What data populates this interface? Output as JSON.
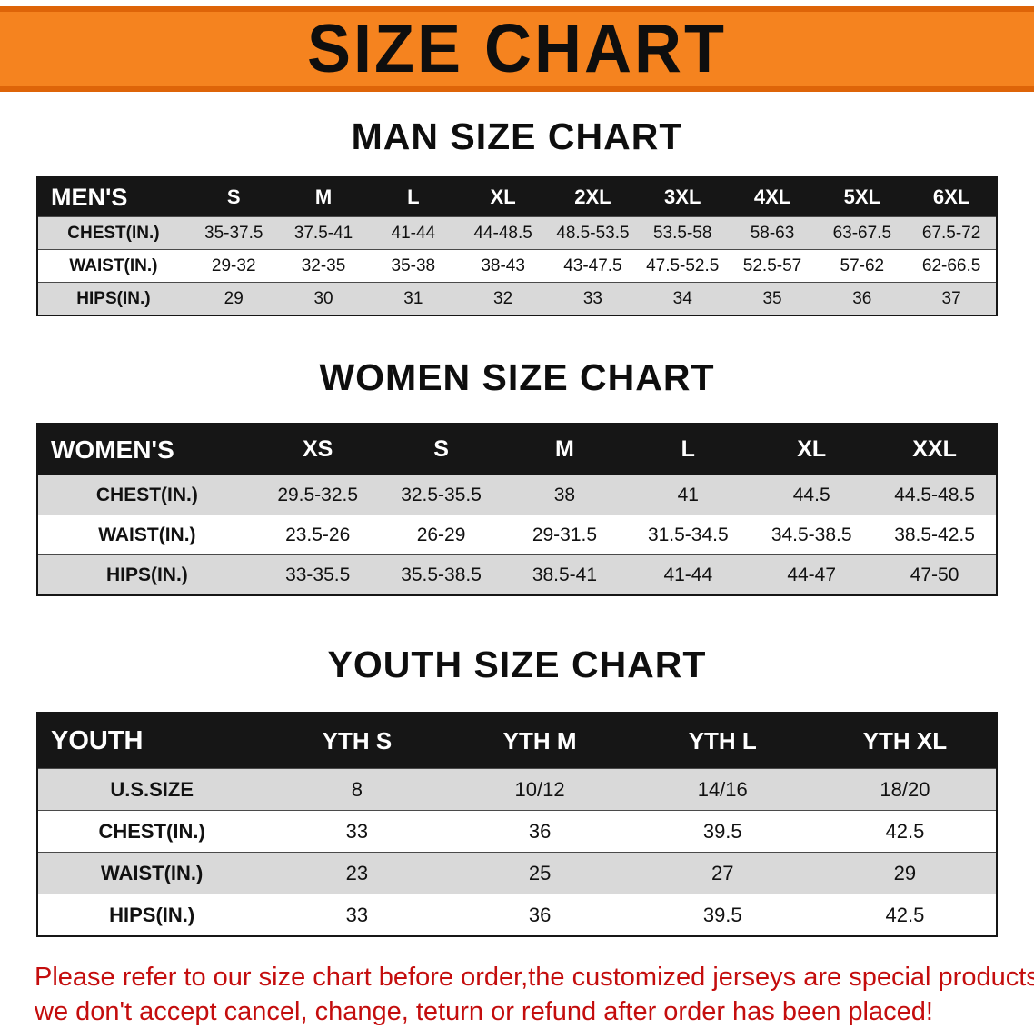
{
  "banner": {
    "title": "SIZE CHART"
  },
  "sections": {
    "men": {
      "heading": "MAN SIZE CHART"
    },
    "women": {
      "heading": "WOMEN SIZE CHART"
    },
    "youth": {
      "heading": "YOUTH SIZE CHART"
    }
  },
  "tables": {
    "men": {
      "header": [
        "MEN'S",
        "S",
        "M",
        "L",
        "XL",
        "2XL",
        "3XL",
        "4XL",
        "5XL",
        "6XL"
      ],
      "rows": [
        [
          "CHEST(IN.)",
          "35-37.5",
          "37.5-41",
          "41-44",
          "44-48.5",
          "48.5-53.5",
          "53.5-58",
          "58-63",
          "63-67.5",
          "67.5-72"
        ],
        [
          "WAIST(IN.)",
          "29-32",
          "32-35",
          "35-38",
          "38-43",
          "43-47.5",
          "47.5-52.5",
          "52.5-57",
          "57-62",
          "62-66.5"
        ],
        [
          "HIPS(IN.)",
          "29",
          "30",
          "31",
          "32",
          "33",
          "34",
          "35",
          "36",
          "37"
        ]
      ]
    },
    "women": {
      "header": [
        "WOMEN'S",
        "XS",
        "S",
        "M",
        "L",
        "XL",
        "XXL"
      ],
      "rows": [
        [
          "CHEST(IN.)",
          "29.5-32.5",
          "32.5-35.5",
          "38",
          "41",
          "44.5",
          "44.5-48.5"
        ],
        [
          "WAIST(IN.)",
          "23.5-26",
          "26-29",
          "29-31.5",
          "31.5-34.5",
          "34.5-38.5",
          "38.5-42.5"
        ],
        [
          "HIPS(IN.)",
          "33-35.5",
          "35.5-38.5",
          "38.5-41",
          "41-44",
          "44-47",
          "47-50"
        ]
      ]
    },
    "youth": {
      "header": [
        "YOUTH",
        "YTH S",
        "YTH M",
        "YTH L",
        "YTH XL"
      ],
      "rows": [
        [
          "U.S.SIZE",
          "8",
          "10/12",
          "14/16",
          "18/20"
        ],
        [
          "CHEST(IN.)",
          "33",
          "36",
          "39.5",
          "42.5"
        ],
        [
          "WAIST(IN.)",
          "23",
          "25",
          "27",
          "29"
        ],
        [
          "HIPS(IN.)",
          "33",
          "36",
          "39.5",
          "42.5"
        ]
      ]
    }
  },
  "disclaimer": {
    "line1": "Please refer to our size chart before order,the customized jerseys are special products,",
    "line2": "we don't accept cancel, change, teturn or refund after order has been placed!"
  },
  "colors": {
    "banner_orange": "#f5831f",
    "banner_edge": "#de6408",
    "header_black": "#161616",
    "row_gray": "#d9d9d9",
    "disclaimer_red": "#c40d0d"
  }
}
